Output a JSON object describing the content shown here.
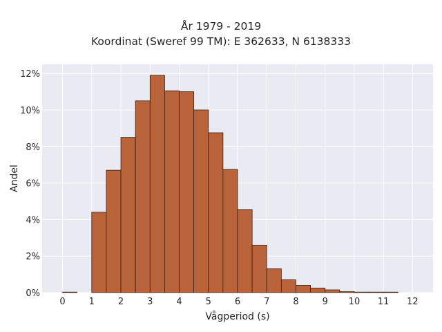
{
  "chart_data": {
    "type": "bar",
    "title_lines": [
      "År 1979 - 2019",
      "Koordinat (Sweref 99 TM): E 362633, N 6138333"
    ],
    "xlabel": "Vågperiod (s)",
    "ylabel": "Andel",
    "xlim": [
      -0.7,
      12.7
    ],
    "ylim": [
      0,
      12.5
    ],
    "x_ticks": [
      0,
      1,
      2,
      3,
      4,
      5,
      6,
      7,
      8,
      9,
      10,
      11,
      12
    ],
    "x_tick_labels": [
      "0",
      "1",
      "2",
      "3",
      "4",
      "5",
      "6",
      "7",
      "8",
      "9",
      "10",
      "11",
      "12"
    ],
    "y_ticks": [
      0,
      2,
      4,
      6,
      8,
      10,
      12
    ],
    "y_tick_labels": [
      "0%",
      "2%",
      "4%",
      "6%",
      "8%",
      "10%",
      "12%"
    ],
    "bin_width": 0.5,
    "bins": [
      {
        "x0": 0.0,
        "value": 0.0
      },
      {
        "x0": 1.0,
        "value": 4.4
      },
      {
        "x0": 1.5,
        "value": 6.7
      },
      {
        "x0": 2.0,
        "value": 8.5
      },
      {
        "x0": 2.5,
        "value": 10.5
      },
      {
        "x0": 3.0,
        "value": 11.9
      },
      {
        "x0": 3.5,
        "value": 11.05
      },
      {
        "x0": 4.0,
        "value": 11.0
      },
      {
        "x0": 4.5,
        "value": 10.0
      },
      {
        "x0": 5.0,
        "value": 8.75
      },
      {
        "x0": 5.5,
        "value": 6.75
      },
      {
        "x0": 6.0,
        "value": 4.55
      },
      {
        "x0": 6.5,
        "value": 2.6
      },
      {
        "x0": 7.0,
        "value": 1.3
      },
      {
        "x0": 7.5,
        "value": 0.7
      },
      {
        "x0": 8.0,
        "value": 0.4
      },
      {
        "x0": 8.5,
        "value": 0.25
      },
      {
        "x0": 9.0,
        "value": 0.15
      },
      {
        "x0": 9.5,
        "value": 0.05
      },
      {
        "x0": 10.0,
        "value": 0.02
      },
      {
        "x0": 10.5,
        "value": 0.01
      },
      {
        "x0": 11.0,
        "value": 0.005
      }
    ],
    "grid": true,
    "colors": {
      "bar_fill": "#b8633a",
      "bar_edge": "#3b1f10",
      "plot_background": "#eaeaf2",
      "grid": "#ffffff"
    }
  }
}
